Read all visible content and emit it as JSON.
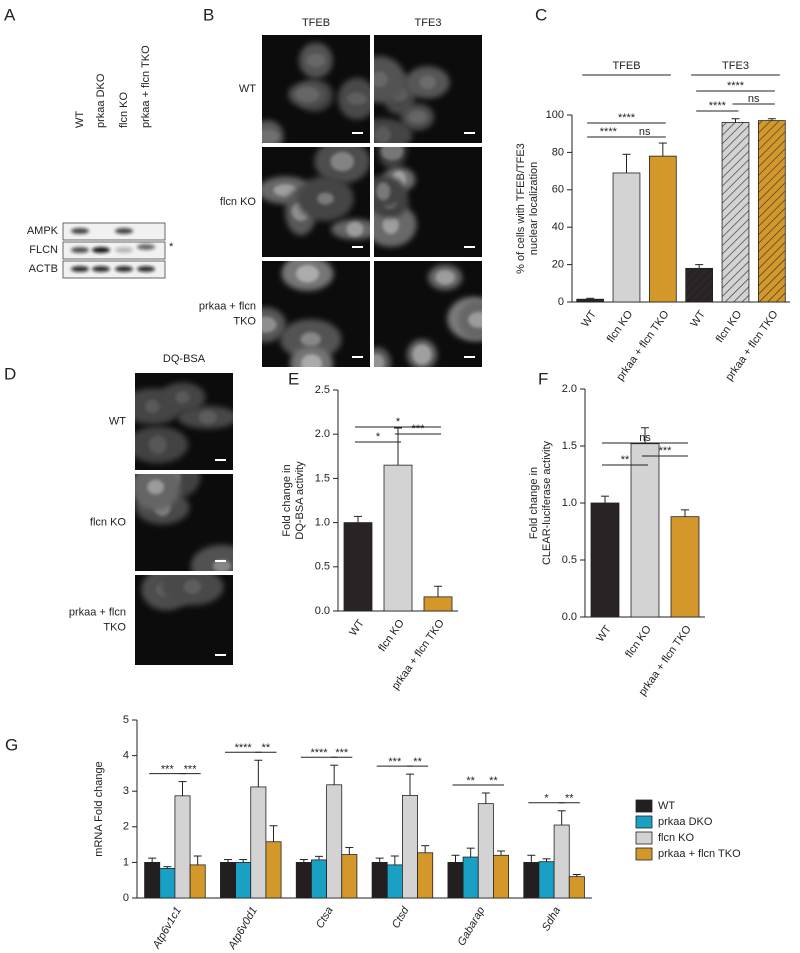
{
  "figure": {
    "panels": [
      "A",
      "B",
      "C",
      "D",
      "E",
      "F",
      "G"
    ],
    "blot": {
      "lanes": [
        "WT",
        "prkaa DKO",
        "flcn KO",
        "prkaa + flcn TKO"
      ],
      "rows": [
        "AMPK",
        "FLCN",
        "ACTB"
      ],
      "marker": "*"
    },
    "micrographs_b": {
      "columns": [
        "TFEB",
        "TFE3"
      ],
      "rows": [
        [
          "WT"
        ],
        [
          "flcn KO"
        ],
        [
          "prkaa + flcn",
          "TKO"
        ]
      ]
    },
    "micrographs_d": {
      "columns": [
        "DQ-BSA"
      ],
      "rows": [
        [
          "WT"
        ],
        [
          "flcn KO"
        ],
        [
          "prkaa + flcn",
          "TKO"
        ]
      ]
    }
  },
  "chart_data": [
    {
      "type": "bar",
      "ylabel": [
        "% of cells with TFEB/TFE3",
        "nuclear localization"
      ],
      "groups": [
        "TFEB",
        "TFE3"
      ],
      "categories": [
        "WT",
        "flcn KO",
        "prkaa + flcn TKO",
        "WT",
        "flcn KO",
        "prkaa + flcn TKO"
      ],
      "values": [
        1.5,
        69,
        78,
        18,
        96,
        97
      ],
      "errors": [
        0.5,
        10,
        7,
        2,
        2,
        1
      ],
      "colors": [
        "#2a2326",
        "#d3d3d3",
        "#d4982a",
        "#2a2326",
        "#d3d3d3",
        "#d4982a"
      ],
      "hatched": [
        false,
        false,
        false,
        true,
        true,
        true
      ],
      "ylim": [
        0,
        100
      ],
      "yticks": [
        0,
        20,
        40,
        60,
        80,
        100
      ],
      "annotations": [
        "****",
        "****",
        "ns",
        "****",
        "ns",
        "****"
      ]
    },
    {
      "type": "bar",
      "ylabel": [
        "Fold change in",
        "DQ-BSA activity"
      ],
      "categories": [
        "WT",
        "flcn KO",
        "prkaa + flcn TKO"
      ],
      "values": [
        1.0,
        1.65,
        0.16
      ],
      "errors": [
        0.07,
        0.42,
        0.12
      ],
      "colors": [
        "#2a2326",
        "#d3d3d3",
        "#d4982a"
      ],
      "ylim": [
        0,
        2.5
      ],
      "yticks": [
        {
          "value": 0,
          "label": "0.0"
        },
        0.5,
        {
          "value": 1,
          "label": "1.0"
        },
        1.5,
        {
          "value": 2,
          "label": "2.0"
        },
        2.5
      ],
      "annotations": [
        "*",
        "***",
        "*"
      ]
    },
    {
      "type": "bar",
      "ylabel": [
        "Fold change in",
        "CLEAR-luciferase activity"
      ],
      "categories": [
        "WT",
        "flcn KO",
        "prkaa + flcn TKO"
      ],
      "values": [
        1.0,
        1.52,
        0.88
      ],
      "errors": [
        0.06,
        0.14,
        0.06
      ],
      "colors": [
        "#2a2326",
        "#d3d3d3",
        "#d4982a"
      ],
      "ylim": [
        0,
        2
      ],
      "yticks": [
        {
          "value": 0,
          "label": "0.0"
        },
        0.5,
        {
          "value": 1,
          "label": "1.0"
        },
        1.5,
        {
          "value": 2,
          "label": "2.0"
        }
      ],
      "annotations": [
        "ns",
        "***",
        "**"
      ]
    },
    {
      "type": "bar",
      "ylabel": [
        "mRNA Fold change"
      ],
      "categories": [
        "Atp6v1c1",
        "Atp6v0d1",
        "Ctsa",
        "Ctsd",
        "Gabarap",
        "Sdha"
      ],
      "series": [
        {
          "name": "WT",
          "color": "#231f20",
          "values": [
            1.0,
            1.0,
            1.0,
            1.0,
            1.0,
            1.0
          ],
          "errors": [
            0.12,
            0.08,
            0.08,
            0.12,
            0.2,
            0.2
          ]
        },
        {
          "name": "prkaa DKO",
          "color": "#1aa0c4",
          "values": [
            0.83,
            1.0,
            1.07,
            0.93,
            1.15,
            1.02
          ],
          "errors": [
            0.05,
            0.08,
            0.1,
            0.25,
            0.25,
            0.08
          ]
        },
        {
          "name": "flcn KO",
          "color": "#d3d3d3",
          "values": [
            2.87,
            3.12,
            3.18,
            2.88,
            2.65,
            2.05
          ],
          "errors": [
            0.4,
            0.75,
            0.55,
            0.6,
            0.3,
            0.4
          ]
        },
        {
          "name": "prkaa + flcn TKO",
          "color": "#d4982a",
          "values": [
            0.93,
            1.58,
            1.22,
            1.27,
            1.2,
            0.6
          ],
          "errors": [
            0.25,
            0.45,
            0.2,
            0.2,
            0.12,
            0.06
          ]
        }
      ],
      "ylim": [
        0,
        5
      ],
      "yticks": [
        0,
        1,
        2,
        3,
        4,
        5
      ],
      "legend": "right",
      "annotations": [
        "***",
        "***",
        "****",
        "**",
        "****",
        "***",
        "***",
        "**",
        "**",
        "**",
        "*",
        "**"
      ]
    }
  ]
}
